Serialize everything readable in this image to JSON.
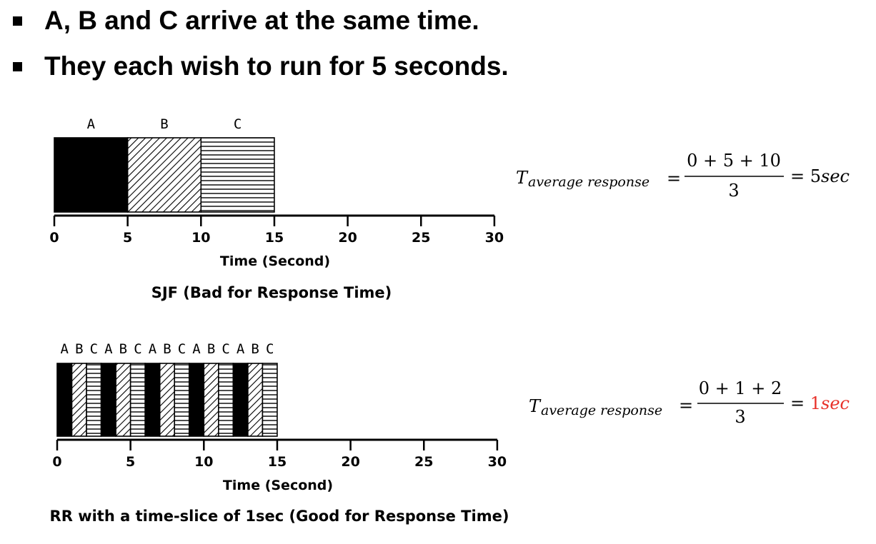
{
  "bullets": [
    "A, B and C arrive at the same time.",
    "They each wish to run for 5 seconds."
  ],
  "colors": {
    "accent": "#e8312a",
    "ink": "#000000"
  },
  "sjf": {
    "process_labels": [
      "A",
      "B",
      "C"
    ],
    "segments": [
      {
        "proc": "A",
        "start": 0,
        "end": 5
      },
      {
        "proc": "B",
        "start": 5,
        "end": 10
      },
      {
        "proc": "C",
        "start": 10,
        "end": 15
      }
    ],
    "ticks": [
      "0",
      "5",
      "10",
      "15",
      "20",
      "25",
      "30"
    ],
    "axis_label": "Time (Second)",
    "caption": "SJF (Bad for Response Time)"
  },
  "rr": {
    "process_labels": [
      "A",
      "B",
      "C",
      "A",
      "B",
      "C",
      "A",
      "B",
      "C",
      "A",
      "B",
      "C",
      "A",
      "B",
      "C"
    ],
    "segments": [
      {
        "proc": "A",
        "start": 0,
        "end": 1
      },
      {
        "proc": "B",
        "start": 1,
        "end": 2
      },
      {
        "proc": "C",
        "start": 2,
        "end": 3
      },
      {
        "proc": "A",
        "start": 3,
        "end": 4
      },
      {
        "proc": "B",
        "start": 4,
        "end": 5
      },
      {
        "proc": "C",
        "start": 5,
        "end": 6
      },
      {
        "proc": "A",
        "start": 6,
        "end": 7
      },
      {
        "proc": "B",
        "start": 7,
        "end": 8
      },
      {
        "proc": "C",
        "start": 8,
        "end": 9
      },
      {
        "proc": "A",
        "start": 9,
        "end": 10
      },
      {
        "proc": "B",
        "start": 10,
        "end": 11
      },
      {
        "proc": "C",
        "start": 11,
        "end": 12
      },
      {
        "proc": "A",
        "start": 12,
        "end": 13
      },
      {
        "proc": "B",
        "start": 13,
        "end": 14
      },
      {
        "proc": "C",
        "start": 14,
        "end": 15
      }
    ],
    "ticks": [
      "0",
      "5",
      "10",
      "15",
      "20",
      "25",
      "30"
    ],
    "axis_label": "Time (Second)",
    "caption": "RR with a time-slice of 1sec (Good for Response Time)"
  },
  "formula_sjf": {
    "symbol": "T",
    "subscript": "average response",
    "equals": "=",
    "numerator": "0 + 5 + 10",
    "denominator": "3",
    "result_prefix": "= ",
    "result_number": "5",
    "result_unit": "sec"
  },
  "formula_rr": {
    "symbol": "T",
    "subscript": "average response",
    "equals": "=",
    "numerator": "0 + 1 + 2",
    "denominator": "3",
    "result_prefix": "= ",
    "result_number": "1",
    "result_unit": "sec"
  }
}
